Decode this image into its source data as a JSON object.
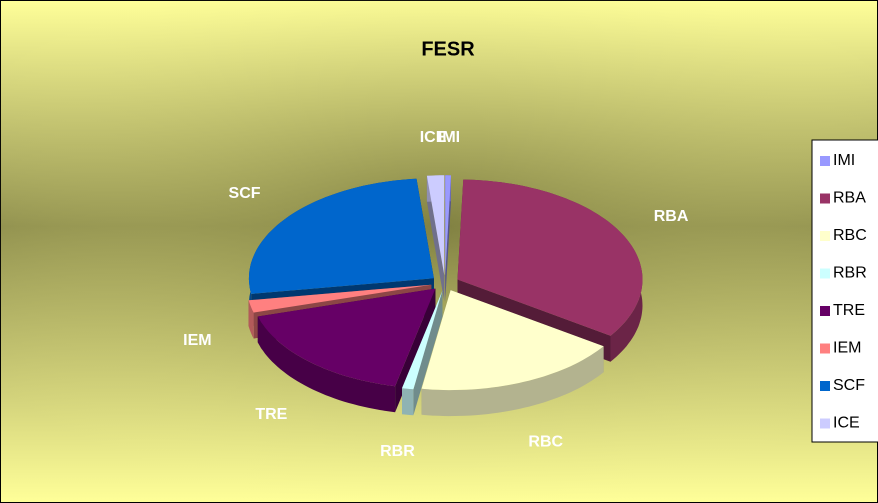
{
  "chart_data": {
    "type": "pie",
    "title": "FESR",
    "categories": [
      "IMI",
      "RBA",
      "RBC",
      "RBR",
      "TRE",
      "IEM",
      "SCF",
      "ICE"
    ],
    "values": [
      0.5,
      34,
      18,
      1,
      17,
      2,
      26,
      1.5
    ],
    "colors": [
      "#9999ff",
      "#993366",
      "#ffffcc",
      "#ccffff",
      "#660066",
      "#ff8080",
      "#0066cc",
      "#ccccff"
    ],
    "legend": "right"
  }
}
